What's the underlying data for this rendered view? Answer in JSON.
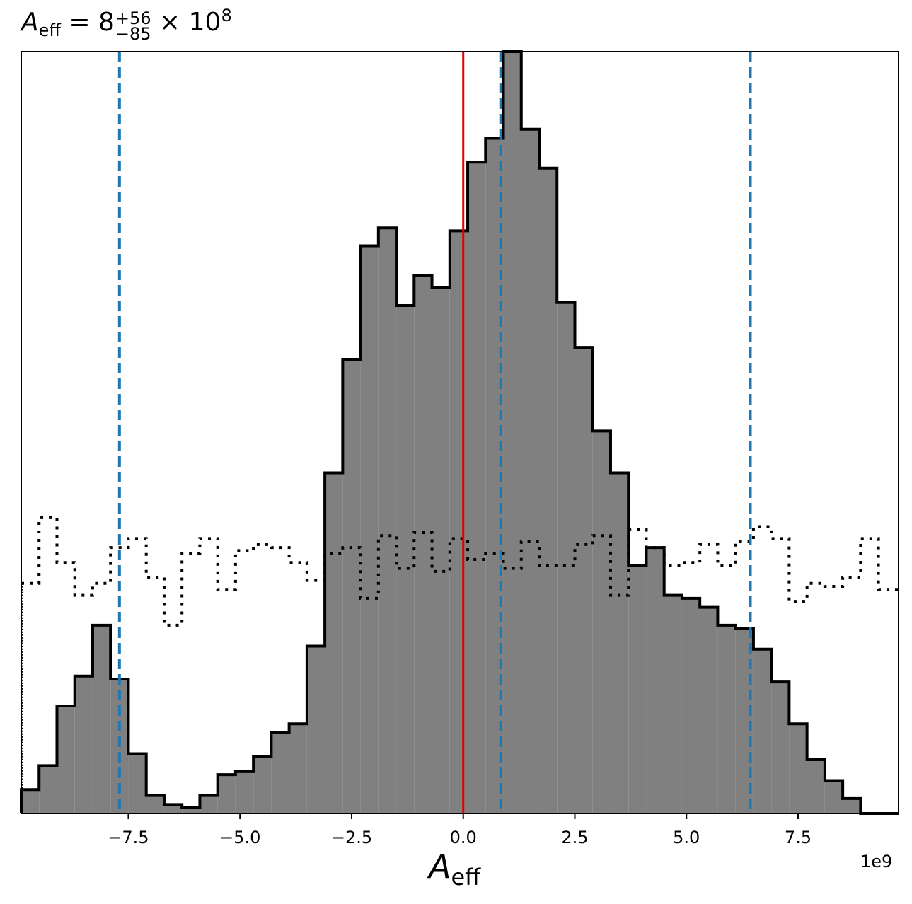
{
  "chart_data": {
    "type": "histogram",
    "title": {
      "var": "A",
      "var_sub": "eff",
      "eq": " = 8",
      "upper": "+56",
      "lower": "−85",
      "times": " × 10",
      "exp": "8"
    },
    "xlabel": {
      "var": "A",
      "sub": "eff"
    },
    "x_offset_label": "1e9",
    "x_ticks": [
      -7.5,
      -5.0,
      -2.5,
      0.0,
      2.5,
      5.0,
      7.5
    ],
    "x_tick_labels": [
      "−7.5",
      "−5.0",
      "−2.5",
      "0.0",
      "2.5",
      "5.0",
      "7.5"
    ],
    "xlim": [
      -9.9,
      9.75
    ],
    "ylim": [
      0,
      255
    ],
    "y_ticks_shown": false,
    "bin_edges": [
      -9.9,
      -9.5,
      -9.1,
      -8.7,
      -8.3,
      -7.9,
      -7.5,
      -7.1,
      -6.7,
      -6.3,
      -5.9,
      -5.5,
      -5.1,
      -4.7,
      -4.3,
      -3.9,
      -3.5,
      -3.1,
      -2.7,
      -2.3,
      -1.9,
      -1.5,
      -1.1,
      -0.7,
      -0.3,
      0.1,
      0.5,
      0.9,
      1.3,
      1.7,
      2.1,
      2.5,
      2.9,
      3.3,
      3.7,
      4.1,
      4.5,
      4.9,
      5.3,
      5.7,
      6.1,
      6.5,
      6.9,
      7.3,
      7.7,
      8.1,
      8.5,
      8.9,
      9.3,
      9.75
    ],
    "series": [
      {
        "name": "posterior",
        "style": "filled-step",
        "fill": "#808080",
        "edge": "#000000",
        "counts": [
          8,
          16,
          36,
          46,
          63,
          45,
          20,
          6,
          3,
          2,
          6,
          13,
          14,
          19,
          27,
          30,
          56,
          114,
          152,
          190,
          196,
          170,
          180,
          176,
          195,
          218,
          226,
          255,
          229,
          216,
          171,
          156,
          128,
          114,
          83,
          89,
          73,
          72,
          69,
          63,
          62,
          55,
          44,
          30,
          18,
          11,
          5,
          0,
          0
        ]
      },
      {
        "name": "prior",
        "style": "dotted-step",
        "edge": "#000000",
        "counts": [
          77,
          99,
          84,
          73,
          77,
          89,
          92,
          79,
          63,
          87,
          92,
          75,
          88,
          90,
          89,
          84,
          78,
          87,
          89,
          72,
          93,
          82,
          94,
          81,
          92,
          85,
          87,
          82,
          91,
          83,
          83,
          90,
          93,
          73,
          95,
          89,
          83,
          84,
          90,
          83,
          91,
          96,
          92,
          71,
          77,
          76,
          79,
          92,
          75
        ]
      }
    ],
    "vlines": [
      {
        "name": "truth",
        "x": 0.0,
        "color": "#e00000",
        "style": "solid"
      },
      {
        "name": "lower-bound",
        "x": -7.7,
        "color": "#1f77b4",
        "style": "dashed"
      },
      {
        "name": "median",
        "x": 0.84,
        "color": "#1f77b4",
        "style": "dashed"
      },
      {
        "name": "upper-bound",
        "x": 6.43,
        "color": "#1f77b4",
        "style": "dashed"
      }
    ]
  }
}
